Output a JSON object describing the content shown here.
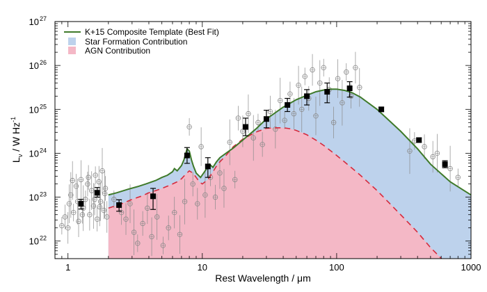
{
  "chart_data": {
    "type": "line",
    "title": "",
    "xlabel": "Rest Wavelength / μm",
    "ylabel_main": "L",
    "ylabel_sub": "ν",
    "ylabel_unit": " / W Hz",
    "ylabel_sup": "-1",
    "x_scale": "log",
    "y_scale": "log",
    "xlim": [
      0.8,
      1000
    ],
    "ylim_log": [
      21.6,
      27.0
    ],
    "x_ticks": [
      {
        "value": 1,
        "label": "1"
      },
      {
        "value": 10,
        "label": "10"
      },
      {
        "value": 100,
        "label": "100"
      },
      {
        "value": 1000,
        "label": "1000"
      }
    ],
    "y_ticks": [
      {
        "exp": 22,
        "base": "10",
        "sup": "22"
      },
      {
        "exp": 23,
        "base": "10",
        "sup": "23"
      },
      {
        "exp": 24,
        "base": "10",
        "sup": "24"
      },
      {
        "exp": 25,
        "base": "10",
        "sup": "25"
      },
      {
        "exp": 26,
        "base": "10",
        "sup": "26"
      },
      {
        "exp": 27,
        "base": "10",
        "sup": "27"
      }
    ],
    "legend_position": "top-left",
    "legend": [
      {
        "label": "K+15 Composite Template (Best Fit)",
        "kind": "line",
        "color": "#3f7a2a"
      },
      {
        "label": "Star Formation Contribution",
        "kind": "patch",
        "color": "#bdd2ec"
      },
      {
        "label": "AGN Contribution",
        "kind": "patch",
        "color": "#f4b8c6"
      }
    ],
    "colors": {
      "total": "#3f7a2a",
      "star_formation_fill": "#bdd2ec",
      "agn_fill": "#f4b8c6",
      "agn_line": "#d62a3c",
      "individual_points": "#8a8a8a",
      "median_points": "#000000"
    },
    "series": [
      {
        "name": "K+15 Composite Template (Best Fit)",
        "x": [
          2.0,
          2.3,
          2.8,
          3.3,
          3.8,
          4.5,
          5.0,
          5.5,
          6.0,
          6.2,
          6.5,
          7.0,
          7.3,
          7.7,
          8.0,
          8.3,
          8.6,
          9.0,
          9.7,
          10.5,
          11.3,
          12.0,
          12.7,
          13.5,
          15.0,
          17.0,
          20.0,
          25.0,
          30.0,
          40.0,
          50.0,
          60.0,
          70.0,
          80.0,
          90.0,
          100.0,
          115.0,
          130.0,
          150.0,
          200.0,
          300.0,
          400.0,
          500.0,
          700.0,
          1000.0
        ],
        "y_log": [
          23.05,
          23.1,
          23.18,
          23.24,
          23.3,
          23.38,
          23.45,
          23.5,
          23.58,
          23.65,
          23.6,
          23.72,
          23.85,
          24.1,
          24.05,
          23.85,
          23.7,
          23.55,
          23.45,
          23.6,
          23.75,
          23.68,
          23.8,
          23.9,
          24.0,
          24.12,
          24.3,
          24.55,
          24.78,
          25.05,
          25.22,
          25.32,
          25.4,
          25.44,
          25.46,
          25.46,
          25.43,
          25.38,
          25.28,
          25.0,
          24.5,
          24.1,
          23.75,
          23.35,
          23.05
        ]
      },
      {
        "name": "AGN Contribution",
        "x": [
          2.0,
          2.5,
          3.0,
          3.5,
          4.0,
          4.5,
          5.0,
          5.5,
          6.0,
          6.5,
          7.0,
          7.5,
          8.0,
          8.5,
          9.0,
          9.5,
          10.0,
          11.0,
          12.0,
          13.0,
          15.0,
          17.0,
          20.0,
          25.0,
          30.0,
          35.0,
          40.0,
          45.0,
          50.0,
          60.0,
          70.0,
          80.0,
          100.0,
          120.0,
          150.0,
          200.0,
          300.0,
          400.0,
          500.0,
          700.0,
          1000.0
        ],
        "y_log": [
          22.75,
          22.85,
          22.95,
          23.02,
          23.1,
          23.15,
          23.2,
          23.25,
          23.3,
          23.35,
          23.42,
          23.52,
          23.6,
          23.55,
          23.45,
          23.35,
          23.3,
          23.4,
          23.58,
          23.75,
          23.95,
          24.15,
          24.32,
          24.48,
          24.57,
          24.58,
          24.58,
          24.56,
          24.52,
          24.42,
          24.3,
          24.18,
          23.95,
          23.75,
          23.5,
          23.15,
          22.6,
          22.2,
          21.85,
          21.4,
          21.0
        ]
      }
    ],
    "median_points": [
      {
        "x": 1.25,
        "y_log": 22.85,
        "err_lo": 0.12,
        "err_hi": 0.1
      },
      {
        "x": 1.65,
        "y_log": 23.1,
        "err_lo": 0.1,
        "err_hi": 0.12
      },
      {
        "x": 2.4,
        "y_log": 22.82,
        "err_lo": 0.14,
        "err_hi": 0.12
      },
      {
        "x": 4.3,
        "y_log": 23.02,
        "err_lo": 0.3,
        "err_hi": 0.18
      },
      {
        "x": 7.7,
        "y_log": 23.95,
        "err_lo": 0.18,
        "err_hi": 0.18
      },
      {
        "x": 11.0,
        "y_log": 23.7,
        "err_lo": 0.25,
        "err_hi": 0.2
      },
      {
        "x": 21.0,
        "y_log": 24.6,
        "err_lo": 0.2,
        "err_hi": 0.2
      },
      {
        "x": 30.0,
        "y_log": 24.78,
        "err_lo": 0.2,
        "err_hi": 0.2
      },
      {
        "x": 43.0,
        "y_log": 25.1,
        "err_lo": 0.15,
        "err_hi": 0.15
      },
      {
        "x": 60.0,
        "y_log": 25.3,
        "err_lo": 0.2,
        "err_hi": 0.15
      },
      {
        "x": 85.0,
        "y_log": 25.4,
        "err_lo": 0.25,
        "err_hi": 0.2
      },
      {
        "x": 125.0,
        "y_log": 25.48,
        "err_lo": 0.2,
        "err_hi": 0.15
      },
      {
        "x": 215.0,
        "y_log": 25.0,
        "err_lo": 0.05,
        "err_hi": 0.05
      },
      {
        "x": 410.0,
        "y_log": 24.3,
        "err_lo": 0.05,
        "err_hi": 0.05
      },
      {
        "x": 640.0,
        "y_log": 23.75,
        "err_lo": 0.08,
        "err_hi": 0.08
      }
    ],
    "individual_points": [
      {
        "x": 0.9,
        "y_log": 22.35
      },
      {
        "x": 0.95,
        "y_log": 22.55
      },
      {
        "x": 1.0,
        "y_log": 22.3
      },
      {
        "x": 1.02,
        "y_log": 22.85
      },
      {
        "x": 1.05,
        "y_log": 23.05
      },
      {
        "x": 1.1,
        "y_log": 22.65
      },
      {
        "x": 1.15,
        "y_log": 23.25
      },
      {
        "x": 1.2,
        "y_log": 22.45
      },
      {
        "x": 1.25,
        "y_log": 23.4
      },
      {
        "x": 1.3,
        "y_log": 22.75
      },
      {
        "x": 1.35,
        "y_log": 22.95
      },
      {
        "x": 1.4,
        "y_log": 23.3
      },
      {
        "x": 1.45,
        "y_log": 22.6
      },
      {
        "x": 1.5,
        "y_log": 23.15
      },
      {
        "x": 1.55,
        "y_log": 22.8
      },
      {
        "x": 1.6,
        "y_log": 23.5
      },
      {
        "x": 1.65,
        "y_log": 22.5
      },
      {
        "x": 1.7,
        "y_log": 23.35
      },
      {
        "x": 1.75,
        "y_log": 22.9
      },
      {
        "x": 1.8,
        "y_log": 23.6
      },
      {
        "x": 1.85,
        "y_log": 22.7
      },
      {
        "x": 1.9,
        "y_log": 23.2
      },
      {
        "x": 1.95,
        "y_log": 22.55
      },
      {
        "x": 1.08,
        "y_log": 23.38
      },
      {
        "x": 1.18,
        "y_log": 22.9
      },
      {
        "x": 1.28,
        "y_log": 22.6
      },
      {
        "x": 1.42,
        "y_log": 23.45
      },
      {
        "x": 1.58,
        "y_log": 22.95
      },
      {
        "x": 1.72,
        "y_log": 22.78
      },
      {
        "x": 1.88,
        "y_log": 23.08
      },
      {
        "x": 2.2,
        "y_log": 22.95
      },
      {
        "x": 2.5,
        "y_log": 22.65
      },
      {
        "x": 2.7,
        "y_log": 22.5
      },
      {
        "x": 2.9,
        "y_log": 22.85
      },
      {
        "x": 3.1,
        "y_log": 22.2
      },
      {
        "x": 3.3,
        "y_log": 21.95
      },
      {
        "x": 3.6,
        "y_log": 22.4
      },
      {
        "x": 3.9,
        "y_log": 22.75
      },
      {
        "x": 4.2,
        "y_log": 22.1
      },
      {
        "x": 4.6,
        "y_log": 22.55
      },
      {
        "x": 5.1,
        "y_log": 21.9
      },
      {
        "x": 5.6,
        "y_log": 22.3
      },
      {
        "x": 6.2,
        "y_log": 22.65
      },
      {
        "x": 6.8,
        "y_log": 22.15
      },
      {
        "x": 7.4,
        "y_log": 22.9
      },
      {
        "x": 8.0,
        "y_log": 24.6
      },
      {
        "x": 8.5,
        "y_log": 23.3
      },
      {
        "x": 9.2,
        "y_log": 22.85
      },
      {
        "x": 9.8,
        "y_log": 24.15
      },
      {
        "x": 10.5,
        "y_log": 23.05
      },
      {
        "x": 11.5,
        "y_log": 23.45
      },
      {
        "x": 12.5,
        "y_log": 23.0
      },
      {
        "x": 13.5,
        "y_log": 23.55
      },
      {
        "x": 14.5,
        "y_log": 23.2
      },
      {
        "x": 16.0,
        "y_log": 24.25
      },
      {
        "x": 17.5,
        "y_log": 23.4
      },
      {
        "x": 18.5,
        "y_log": 24.8
      },
      {
        "x": 20.0,
        "y_log": 24.5
      },
      {
        "x": 22.0,
        "y_log": 24.9
      },
      {
        "x": 24.0,
        "y_log": 24.35
      },
      {
        "x": 26.0,
        "y_log": 24.7
      },
      {
        "x": 28.0,
        "y_log": 24.2
      },
      {
        "x": 32.0,
        "y_log": 24.95
      },
      {
        "x": 35.0,
        "y_log": 24.55
      },
      {
        "x": 38.0,
        "y_log": 25.2
      },
      {
        "x": 41.0,
        "y_log": 24.75
      },
      {
        "x": 45.0,
        "y_log": 25.35
      },
      {
        "x": 48.0,
        "y_log": 24.9
      },
      {
        "x": 52.0,
        "y_log": 25.55
      },
      {
        "x": 55.0,
        "y_log": 25.0
      },
      {
        "x": 58.0,
        "y_log": 25.75
      },
      {
        "x": 62.0,
        "y_log": 25.25
      },
      {
        "x": 66.0,
        "y_log": 25.9
      },
      {
        "x": 70.0,
        "y_log": 24.85
      },
      {
        "x": 75.0,
        "y_log": 25.6
      },
      {
        "x": 80.0,
        "y_log": 25.95
      },
      {
        "x": 88.0,
        "y_log": 25.45
      },
      {
        "x": 95.0,
        "y_log": 24.7
      },
      {
        "x": 102.0,
        "y_log": 25.7
      },
      {
        "x": 110.0,
        "y_log": 25.15
      },
      {
        "x": 118.0,
        "y_log": 25.85
      },
      {
        "x": 128.0,
        "y_log": 25.3
      },
      {
        "x": 138.0,
        "y_log": 25.95
      },
      {
        "x": 148.0,
        "y_log": 25.5
      },
      {
        "x": 350.0,
        "y_log": 24.05
      },
      {
        "x": 380.0,
        "y_log": 24.28
      },
      {
        "x": 450.0,
        "y_log": 24.15
      },
      {
        "x": 520.0,
        "y_log": 23.92
      },
      {
        "x": 560.0,
        "y_log": 24.0
      },
      {
        "x": 700.0,
        "y_log": 23.65
      },
      {
        "x": 800.0,
        "y_log": 23.45
      }
    ]
  }
}
